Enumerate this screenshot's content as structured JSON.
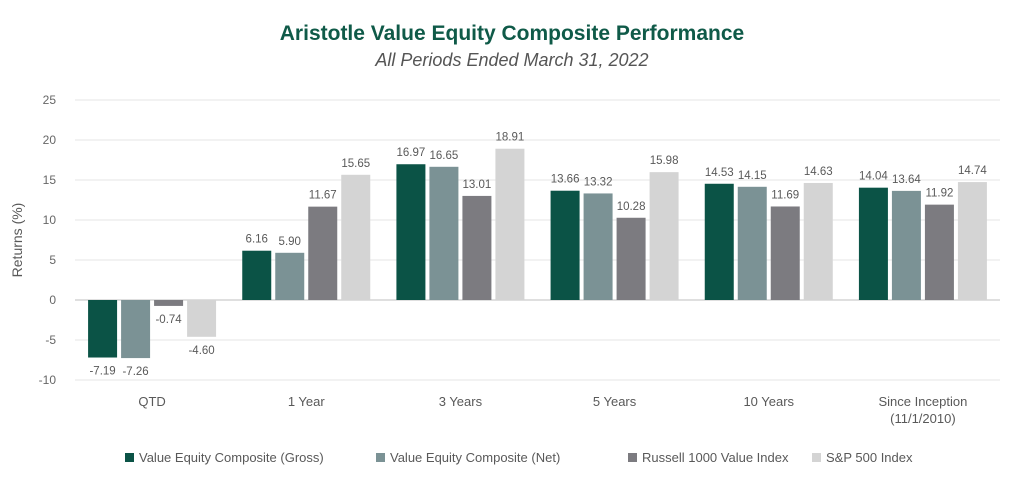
{
  "title": "Aristotle Value Equity Composite Performance",
  "subtitle": "All Periods Ended March 31, 2022",
  "chart_data": {
    "type": "bar",
    "title": "Aristotle Value Equity Composite Performance",
    "subtitle": "All Periods Ended March 31, 2022",
    "ylabel": "Returns (%)",
    "xlabel": "",
    "ylim": [
      -10,
      25
    ],
    "yticks": [
      25,
      20,
      15,
      10,
      5,
      0,
      -5,
      -10
    ],
    "grid": true,
    "legend_position": "bottom",
    "categories": [
      [
        "QTD"
      ],
      [
        "1 Year"
      ],
      [
        "3 Years"
      ],
      [
        "5 Years"
      ],
      [
        "10 Years"
      ],
      [
        "Since Inception",
        "(11/1/2010)"
      ]
    ],
    "series": [
      {
        "name": "Value Equity Composite (Gross)",
        "color": "#0b5346",
        "values": [
          -7.19,
          6.16,
          16.97,
          13.66,
          14.53,
          14.04
        ],
        "labels": [
          "-7.19",
          "6.16",
          "16.97",
          "13.66",
          "14.53",
          "14.04"
        ]
      },
      {
        "name": "Value Equity Composite (Net)",
        "color": "#7b9295",
        "values": [
          -7.26,
          5.9,
          16.65,
          13.32,
          14.15,
          13.64
        ],
        "labels": [
          "-7.26",
          "5.90",
          "16.65",
          "13.32",
          "14.15",
          "13.64"
        ]
      },
      {
        "name": "Russell 1000 Value Index",
        "color": "#7c7b80",
        "values": [
          -0.74,
          11.67,
          13.01,
          10.28,
          11.69,
          11.92
        ],
        "labels": [
          "-0.74",
          "11.67",
          "13.01",
          "10.28",
          "11.69",
          "11.92"
        ]
      },
      {
        "name": "S&P 500 Index",
        "color": "#d4d4d4",
        "values": [
          -4.6,
          15.65,
          18.91,
          15.98,
          14.63,
          14.74
        ],
        "labels": [
          "-4.60",
          "15.65",
          "18.91",
          "15.98",
          "14.63",
          "14.74"
        ]
      }
    ]
  }
}
